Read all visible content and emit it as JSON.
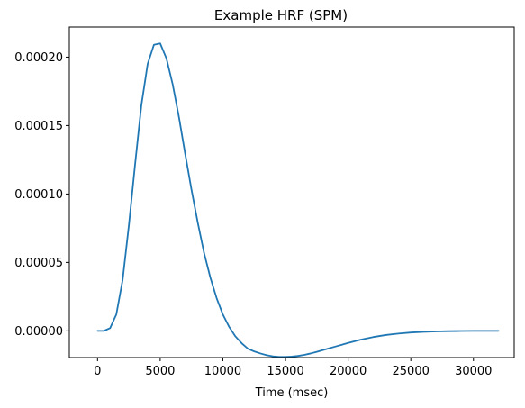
{
  "chart_data": {
    "type": "line",
    "title": "Example HRF (SPM)",
    "xlabel": "Time (msec)",
    "ylabel": "",
    "xlim": [
      -2250,
      33250
    ],
    "ylim": [
      -1.95e-05,
      0.000222
    ],
    "x_ticks": [
      0,
      5000,
      10000,
      15000,
      20000,
      25000,
      30000
    ],
    "x_tick_labels": [
      "0",
      "5000",
      "10000",
      "15000",
      "20000",
      "25000",
      "30000"
    ],
    "y_ticks": [
      0,
      5e-05,
      0.0001,
      0.00015,
      0.0002
    ],
    "y_tick_labels": [
      "0.00000",
      "0.00005",
      "0.00010",
      "0.00015",
      "0.00020"
    ],
    "grid": false,
    "legend": "none",
    "series": [
      {
        "color": "#1f77b4",
        "x": [
          0,
          500,
          1000,
          1500,
          2000,
          2500,
          3000,
          3500,
          4000,
          4500,
          5000,
          5500,
          6000,
          6500,
          7000,
          7500,
          8000,
          8500,
          9000,
          9500,
          10000,
          10500,
          11000,
          11500,
          12000,
          12500,
          13000,
          13500,
          14000,
          14500,
          15000,
          15500,
          16000,
          16500,
          17000,
          17500,
          18000,
          18500,
          19000,
          19500,
          20000,
          21000,
          22000,
          23000,
          24000,
          25000,
          26000,
          27000,
          28000,
          29000,
          30000,
          31000,
          32000
        ],
        "y": [
          0,
          0,
          2e-06,
          1.2e-05,
          3.7e-05,
          7.7e-05,
          0.000122,
          0.000165,
          0.000195,
          0.000209,
          0.00021,
          0.000199,
          0.00018,
          0.000156,
          0.000129,
          0.000103,
          7.9e-05,
          5.7e-05,
          3.9e-05,
          2.4e-05,
          1.2e-05,
          3e-06,
          -4e-06,
          -9e-06,
          -1.3e-05,
          -1.5e-05,
          -1.65e-05,
          -1.78e-05,
          -1.86e-05,
          -1.9e-05,
          -1.9e-05,
          -1.88e-05,
          -1.83e-05,
          -1.75e-05,
          -1.65e-05,
          -1.53e-05,
          -1.4e-05,
          -1.27e-05,
          -1.14e-05,
          -1.01e-05,
          -8.8e-06,
          -6.4e-06,
          -4.5e-06,
          -3e-06,
          -2e-06,
          -1.2e-06,
          -7e-07,
          -4e-07,
          -2e-07,
          -1e-07,
          0,
          0,
          0
        ]
      }
    ]
  }
}
